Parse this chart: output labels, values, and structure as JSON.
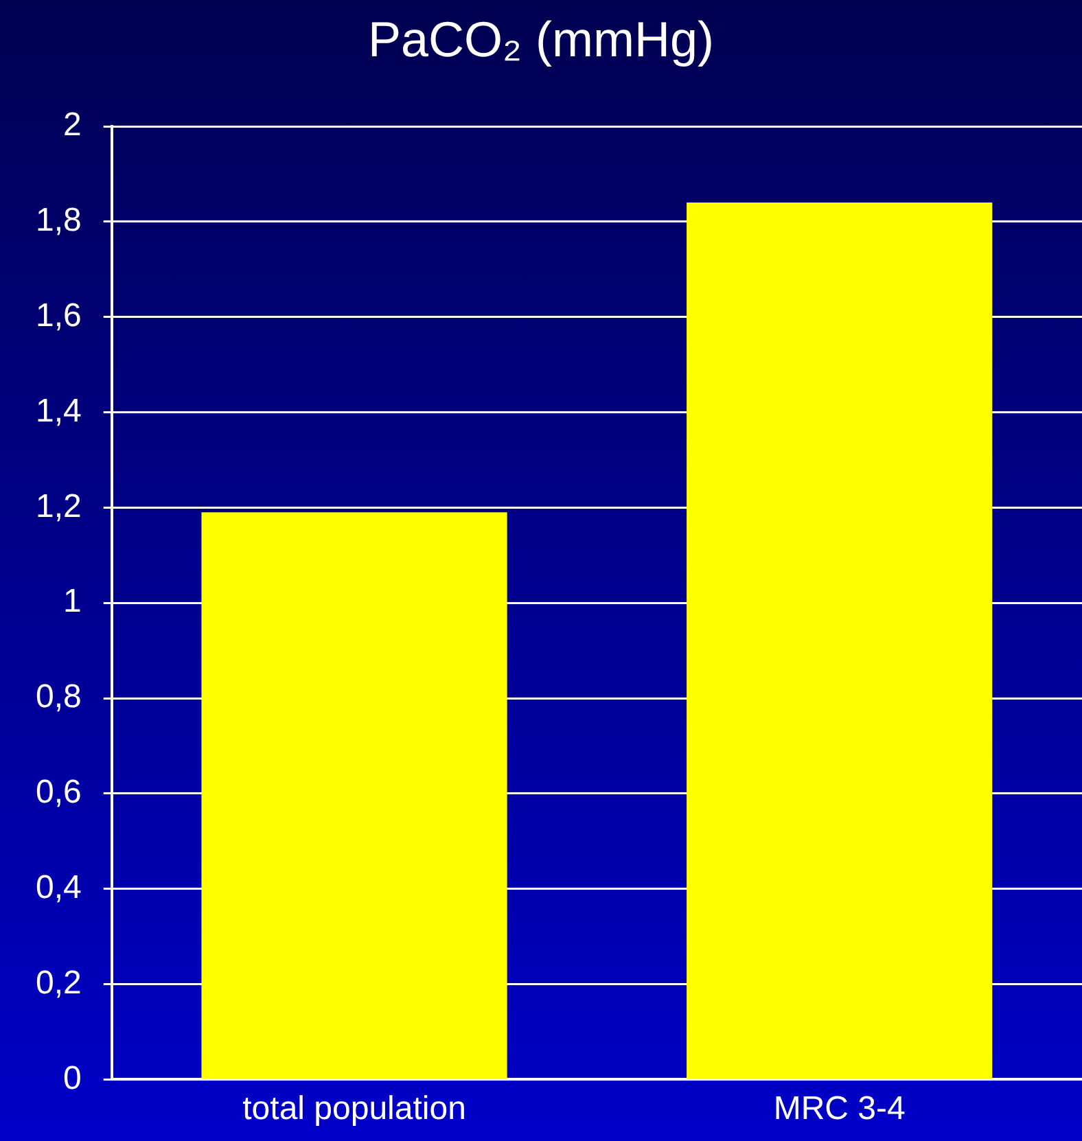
{
  "chart_data": {
    "type": "bar",
    "title": "PaCO₂ (mmHg)",
    "categories": [
      "total population",
      "MRC 3-4"
    ],
    "values": [
      1.19,
      1.84
    ],
    "color": "#ffff00",
    "ylim": [
      0,
      2
    ],
    "yticks": [
      0,
      {
        "value": 0.2,
        "label": "0,2"
      },
      {
        "value": 0.4,
        "label": "0,4"
      },
      {
        "value": 0.6,
        "label": "0,6"
      },
      {
        "value": 0.8,
        "label": "0,8"
      },
      1,
      {
        "value": 1.2,
        "label": "1,2"
      },
      {
        "value": 1.4,
        "label": "1,4"
      },
      {
        "value": 1.6,
        "label": "1,6"
      },
      {
        "value": 1.8,
        "label": "1,8"
      },
      2
    ],
    "grid": "y"
  }
}
